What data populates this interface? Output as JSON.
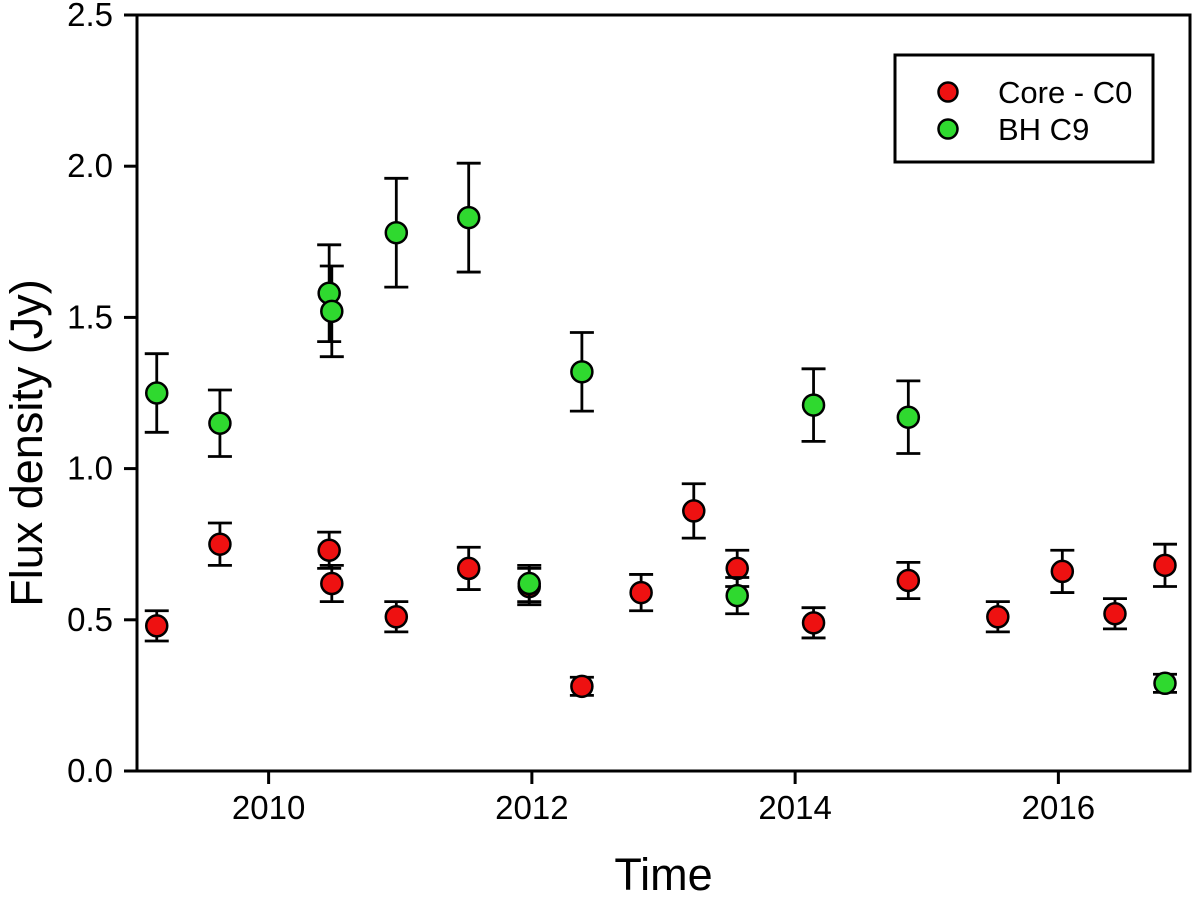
{
  "figure": {
    "background": "#ffffff",
    "frame_color": "#000000"
  },
  "chart_data": {
    "type": "scatter",
    "title": "",
    "xlabel": "Time",
    "ylabel": "Flux density (Jy)",
    "xlim": [
      2009,
      2017
    ],
    "ylim": [
      0.0,
      2.5
    ],
    "x_ticks": [
      2010,
      2012,
      2014,
      2016
    ],
    "x_tick_labels": [
      "2010",
      "2012",
      "2014",
      "2016"
    ],
    "y_ticks": [
      0.0,
      0.5,
      1.0,
      1.5,
      2.0,
      2.5
    ],
    "y_tick_labels": [
      "0.0",
      "0.5",
      "1.0",
      "1.5",
      "2.0",
      "2.5"
    ],
    "grid": false,
    "legend": {
      "position": "top-right"
    },
    "series": [
      {
        "name": "Core - C0",
        "slug": "core-c0",
        "color": "#EE1111",
        "edge_color": "#000000",
        "points": [
          {
            "x": 2009.15,
            "y": 0.48,
            "err": 0.05
          },
          {
            "x": 2009.63,
            "y": 0.75,
            "err": 0.07
          },
          {
            "x": 2010.46,
            "y": 0.73,
            "err": 0.06
          },
          {
            "x": 2010.48,
            "y": 0.62,
            "err": 0.06
          },
          {
            "x": 2010.97,
            "y": 0.51,
            "err": 0.05
          },
          {
            "x": 2011.52,
            "y": 0.67,
            "err": 0.07
          },
          {
            "x": 2011.98,
            "y": 0.61,
            "err": 0.06
          },
          {
            "x": 2012.38,
            "y": 0.28,
            "err": 0.03
          },
          {
            "x": 2012.83,
            "y": 0.59,
            "err": 0.06
          },
          {
            "x": 2013.23,
            "y": 0.86,
            "err": 0.09
          },
          {
            "x": 2013.56,
            "y": 0.67,
            "err": 0.06
          },
          {
            "x": 2014.14,
            "y": 0.49,
            "err": 0.05
          },
          {
            "x": 2014.86,
            "y": 0.63,
            "err": 0.06
          },
          {
            "x": 2015.54,
            "y": 0.51,
            "err": 0.05
          },
          {
            "x": 2016.03,
            "y": 0.66,
            "err": 0.07
          },
          {
            "x": 2016.43,
            "y": 0.52,
            "err": 0.05
          },
          {
            "x": 2016.81,
            "y": 0.68,
            "err": 0.07
          }
        ]
      },
      {
        "name": "BH C9",
        "slug": "bh-c9",
        "color": "#2FD92F",
        "edge_color": "#000000",
        "points": [
          {
            "x": 2009.15,
            "y": 1.25,
            "err": 0.13
          },
          {
            "x": 2009.63,
            "y": 1.15,
            "err": 0.11
          },
          {
            "x": 2010.46,
            "y": 1.58,
            "err": 0.16
          },
          {
            "x": 2010.48,
            "y": 1.52,
            "err": 0.15
          },
          {
            "x": 2010.97,
            "y": 1.78,
            "err": 0.18
          },
          {
            "x": 2011.52,
            "y": 1.83,
            "err": 0.18
          },
          {
            "x": 2011.98,
            "y": 0.62,
            "err": 0.06
          },
          {
            "x": 2012.38,
            "y": 1.32,
            "err": 0.13
          },
          {
            "x": 2013.56,
            "y": 0.58,
            "err": 0.06
          },
          {
            "x": 2014.14,
            "y": 1.21,
            "err": 0.12
          },
          {
            "x": 2014.86,
            "y": 1.17,
            "err": 0.12
          },
          {
            "x": 2016.81,
            "y": 0.29,
            "err": 0.03
          }
        ]
      }
    ]
  }
}
